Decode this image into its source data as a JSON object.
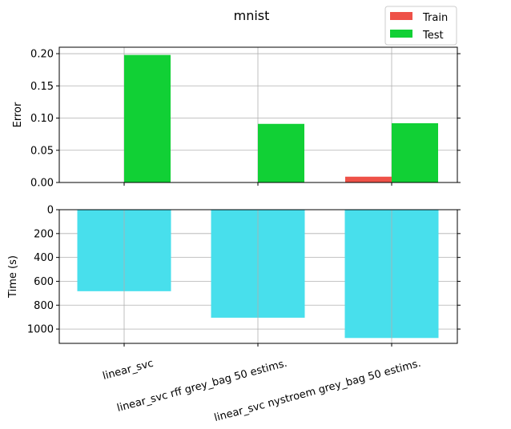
{
  "figure": {
    "title": "mnist"
  },
  "legend": {
    "placement": "upper-right",
    "entries": [
      {
        "label": "Train",
        "color": "#ee5148"
      },
      {
        "label": "Test",
        "color": "#11d035"
      }
    ]
  },
  "chart_data": [
    {
      "type": "bar",
      "panel": "top",
      "title": "mnist",
      "ylabel": "Error",
      "xlabel": "",
      "ylim": [
        0,
        0.21
      ],
      "yticks": [
        "0.00",
        "0.05",
        "0.10",
        "0.15",
        "0.20"
      ],
      "categories": [
        "linear_svc",
        "linear_svc rff grey_bag 50 estims.",
        "linear_svc nystroem grey_bag 50 estims."
      ],
      "grid": true,
      "series": [
        {
          "name": "Train",
          "color": "#ee5148",
          "values": [
            0.0,
            0.0,
            0.009
          ]
        },
        {
          "name": "Test",
          "color": "#11d035",
          "values": [
            0.198,
            0.091,
            0.092
          ]
        }
      ]
    },
    {
      "type": "bar",
      "panel": "bottom",
      "ylabel": "Time (s)",
      "xlabel": "",
      "ylim": [
        0,
        1120
      ],
      "y_inverted": true,
      "yticks": [
        "0",
        "200",
        "400",
        "600",
        "800",
        "1000"
      ],
      "categories": [
        "linear_svc",
        "linear_svc rff grey_bag 50 estims.",
        "linear_svc nystroem grey_bag 50 estims."
      ],
      "grid": true,
      "series": [
        {
          "name": "",
          "color": "#48dfec",
          "values": [
            683,
            905,
            1075
          ]
        }
      ]
    }
  ]
}
